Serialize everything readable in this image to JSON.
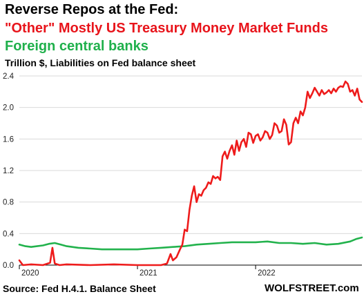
{
  "header": {
    "title": "Reverse Repos at the Fed:",
    "line_other": "\"Other\" Mostly US Treasury Money Market Funds",
    "line_foreign": "Foreign central banks",
    "subtitle": "Trillion $, Liabilities on Fed balance sheet"
  },
  "footer": {
    "source": "Source: Fed H.4.1. Balance Sheet",
    "brand": "WOLFSTREET.com"
  },
  "colors": {
    "other": "#ee1b1b",
    "foreign": "#22b24c",
    "grid": "#d9d9d9"
  },
  "chart_data": {
    "type": "line",
    "title": "Reverse Repos at the Fed:",
    "ylabel": "Trillion $, Liabilities on Fed balance sheet",
    "xlim": [
      2020.0,
      2022.9
    ],
    "ylim": [
      0,
      2.4
    ],
    "y_ticks": [
      "0.0",
      "0.4",
      "0.8",
      "1.2",
      "1.6",
      "2.0",
      "2.4"
    ],
    "x_ticks": [
      {
        "label": "2020",
        "value": 2020.0
      },
      {
        "label": "2021",
        "value": 2021.0
      },
      {
        "label": "2022",
        "value": 2022.0
      }
    ],
    "grid": "horizontal",
    "series": [
      {
        "name": "\"Other\" Mostly US Treasury Money Market Funds",
        "color": "#ee1b1b",
        "x": [
          2020.0,
          2020.03,
          2020.1,
          2020.2,
          2020.26,
          2020.28,
          2020.3,
          2020.34,
          2020.4,
          2020.6,
          2020.8,
          2021.0,
          2021.1,
          2021.2,
          2021.25,
          2021.28,
          2021.3,
          2021.33,
          2021.36,
          2021.38,
          2021.4,
          2021.42,
          2021.44,
          2021.46,
          2021.48,
          2021.5,
          2021.52,
          2021.54,
          2021.56,
          2021.58,
          2021.6,
          2021.62,
          2021.64,
          2021.66,
          2021.68,
          2021.7,
          2021.72,
          2021.74,
          2021.76,
          2021.78,
          2021.8,
          2021.82,
          2021.84,
          2021.86,
          2021.88,
          2021.9,
          2021.92,
          2021.94,
          2021.96,
          2021.98,
          2022.0,
          2022.02,
          2022.04,
          2022.06,
          2022.08,
          2022.1,
          2022.12,
          2022.14,
          2022.16,
          2022.18,
          2022.2,
          2022.22,
          2022.24,
          2022.26,
          2022.28,
          2022.3,
          2022.32,
          2022.34,
          2022.36,
          2022.38,
          2022.4,
          2022.42,
          2022.44,
          2022.46,
          2022.48,
          2022.5,
          2022.52,
          2022.54,
          2022.56,
          2022.58,
          2022.6,
          2022.62,
          2022.64,
          2022.66,
          2022.68,
          2022.7,
          2022.72,
          2022.74,
          2022.76,
          2022.78,
          2022.8,
          2022.82,
          2022.84,
          2022.86,
          2022.88,
          2022.9
        ],
        "y": [
          0.06,
          0.0,
          0.01,
          0.0,
          0.03,
          0.22,
          0.02,
          0.0,
          0.01,
          0.0,
          0.01,
          0.0,
          0.0,
          0.0,
          0.02,
          0.14,
          0.06,
          0.1,
          0.2,
          0.26,
          0.45,
          0.43,
          0.7,
          0.88,
          1.0,
          0.8,
          0.9,
          0.88,
          0.95,
          0.98,
          1.05,
          1.03,
          1.13,
          1.1,
          1.12,
          1.08,
          1.38,
          1.44,
          1.35,
          1.45,
          1.52,
          1.4,
          1.58,
          1.45,
          1.56,
          1.6,
          1.5,
          1.68,
          1.66,
          1.55,
          1.64,
          1.66,
          1.58,
          1.62,
          1.7,
          1.68,
          1.6,
          1.65,
          1.8,
          1.77,
          1.68,
          1.7,
          1.85,
          1.78,
          1.53,
          1.56,
          1.8,
          1.87,
          1.8,
          1.95,
          1.9,
          2.0,
          2.2,
          2.12,
          2.18,
          2.25,
          2.2,
          2.15,
          2.22,
          2.17,
          2.19,
          2.22,
          2.18,
          2.24,
          2.2,
          2.25,
          2.27,
          2.26,
          2.33,
          2.3,
          2.2,
          2.22,
          2.15,
          2.24,
          2.1,
          2.07
        ]
      },
      {
        "name": "Foreign central banks",
        "color": "#22b24c",
        "x": [
          2020.0,
          2020.05,
          2020.1,
          2020.15,
          2020.2,
          2020.25,
          2020.3,
          2020.35,
          2020.4,
          2020.5,
          2020.6,
          2020.7,
          2020.8,
          2020.9,
          2021.0,
          2021.1,
          2021.2,
          2021.3,
          2021.4,
          2021.5,
          2021.6,
          2021.7,
          2021.8,
          2021.9,
          2022.0,
          2022.1,
          2022.2,
          2022.3,
          2022.4,
          2022.5,
          2022.6,
          2022.7,
          2022.8,
          2022.85,
          2022.9
        ],
        "y": [
          0.26,
          0.24,
          0.23,
          0.24,
          0.25,
          0.27,
          0.28,
          0.26,
          0.24,
          0.22,
          0.21,
          0.2,
          0.2,
          0.2,
          0.2,
          0.21,
          0.22,
          0.23,
          0.24,
          0.26,
          0.27,
          0.28,
          0.29,
          0.29,
          0.29,
          0.3,
          0.28,
          0.28,
          0.27,
          0.28,
          0.26,
          0.27,
          0.3,
          0.33,
          0.35
        ]
      }
    ]
  }
}
